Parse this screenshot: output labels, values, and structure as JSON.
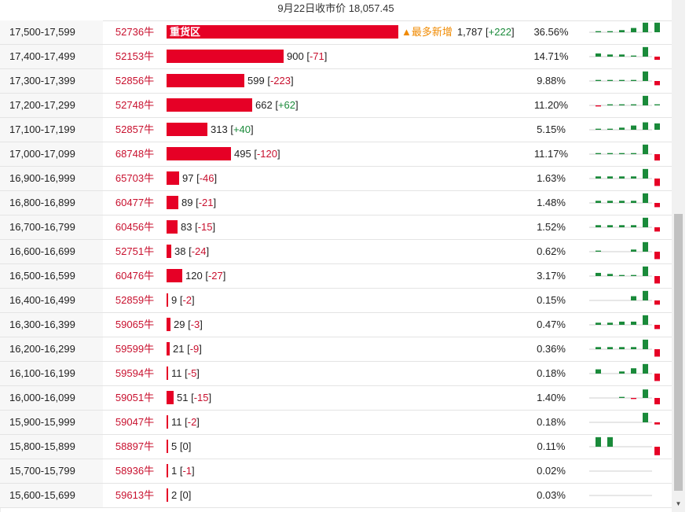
{
  "header": {
    "title": "9月22日收市价 18,057.45"
  },
  "rows": [
    {
      "range": "17,500-17,599",
      "strike": "52736牛",
      "value": "1,787",
      "change": "+222",
      "pct": "36.56%",
      "bar_fraction": 1.0,
      "tag": "重货区",
      "most": "▲最多新增",
      "spark": [
        1,
        1,
        2,
        4,
        9,
        9
      ]
    },
    {
      "range": "17,400-17,499",
      "strike": "52153牛",
      "value": "900",
      "change": "-71",
      "pct": "14.71%",
      "bar_fraction": 0.504,
      "spark": [
        3,
        2,
        2,
        1,
        9,
        -3
      ]
    },
    {
      "range": "17,300-17,399",
      "strike": "52856牛",
      "value": "599",
      "change": "-223",
      "pct": "9.88%",
      "bar_fraction": 0.335,
      "spark": [
        1,
        1,
        1,
        1,
        9,
        -4
      ]
    },
    {
      "range": "17,200-17,299",
      "strike": "52748牛",
      "value": "662",
      "change": "+62",
      "pct": "11.20%",
      "bar_fraction": 0.37,
      "spark": [
        -1,
        1,
        1,
        1,
        9,
        1
      ]
    },
    {
      "range": "17,100-17,199",
      "strike": "52857牛",
      "value": "313",
      "change": "+40",
      "pct": "5.15%",
      "bar_fraction": 0.175,
      "spark": [
        1,
        1,
        2,
        4,
        7,
        6
      ]
    },
    {
      "range": "17,000-17,099",
      "strike": "68748牛",
      "value": "495",
      "change": "-120",
      "pct": "11.17%",
      "bar_fraction": 0.277,
      "spark": [
        1,
        1,
        1,
        1,
        9,
        -6
      ]
    },
    {
      "range": "16,900-16,999",
      "strike": "65703牛",
      "value": "97",
      "change": "-46",
      "pct": "1.63%",
      "bar_fraction": 0.054,
      "spark": [
        2,
        2,
        2,
        2,
        9,
        -7
      ]
    },
    {
      "range": "16,800-16,899",
      "strike": "60477牛",
      "value": "89",
      "change": "-21",
      "pct": "1.48%",
      "bar_fraction": 0.05,
      "spark": [
        2,
        2,
        2,
        2,
        9,
        -4
      ]
    },
    {
      "range": "16,700-16,799",
      "strike": "60456牛",
      "value": "83",
      "change": "-15",
      "pct": "1.52%",
      "bar_fraction": 0.046,
      "spark": [
        2,
        2,
        2,
        2,
        9,
        -4
      ]
    },
    {
      "range": "16,600-16,699",
      "strike": "52751牛",
      "value": "38",
      "change": "-24",
      "pct": "0.62%",
      "bar_fraction": 0.021,
      "spark": [
        1,
        0,
        0,
        2,
        9,
        -7
      ]
    },
    {
      "range": "16,500-16,599",
      "strike": "60476牛",
      "value": "120",
      "change": "-27",
      "pct": "3.17%",
      "bar_fraction": 0.067,
      "spark": [
        3,
        2,
        1,
        1,
        9,
        -7
      ]
    },
    {
      "range": "16,400-16,499",
      "strike": "52859牛",
      "value": "9",
      "change": "-2",
      "pct": "0.15%",
      "bar_fraction": 0.005,
      "spark": [
        0,
        0,
        0,
        4,
        9,
        -4
      ]
    },
    {
      "range": "16,300-16,399",
      "strike": "59065牛",
      "value": "29",
      "change": "-3",
      "pct": "0.47%",
      "bar_fraction": 0.016,
      "spark": [
        2,
        2,
        3,
        3,
        9,
        -4
      ]
    },
    {
      "range": "16,200-16,299",
      "strike": "59599牛",
      "value": "21",
      "change": "-9",
      "pct": "0.36%",
      "bar_fraction": 0.012,
      "spark": [
        2,
        2,
        2,
        2,
        9,
        -7
      ]
    },
    {
      "range": "16,100-16,199",
      "strike": "59594牛",
      "value": "11",
      "change": "-5",
      "pct": "0.18%",
      "bar_fraction": 0.006,
      "spark": [
        4,
        0,
        2,
        5,
        9,
        -7
      ]
    },
    {
      "range": "16,000-16,099",
      "strike": "59051牛",
      "value": "51",
      "change": "-15",
      "pct": "1.40%",
      "bar_fraction": 0.029,
      "spark": [
        0,
        0,
        1,
        -1,
        8,
        -6
      ]
    },
    {
      "range": "15,900-15,999",
      "strike": "59047牛",
      "value": "11",
      "change": "-2",
      "pct": "0.18%",
      "bar_fraction": 0.006,
      "spark": [
        0,
        0,
        0,
        0,
        9,
        -2
      ]
    },
    {
      "range": "15,800-15,899",
      "strike": "58897牛",
      "value": "5",
      "change": "0",
      "pct": "0.11%",
      "bar_fraction": 0.003,
      "spark": [
        9,
        9,
        0,
        0,
        0,
        -8
      ]
    },
    {
      "range": "15,700-15,799",
      "strike": "58936牛",
      "value": "1",
      "change": "-1",
      "pct": "0.02%",
      "bar_fraction": 0.001,
      "spark": [
        0,
        0,
        0,
        0,
        0,
        0
      ]
    },
    {
      "range": "15,600-15,699",
      "strike": "59613牛",
      "value": "2",
      "change": "0",
      "pct": "0.03%",
      "bar_fraction": 0.001,
      "spark": [
        0,
        0,
        0,
        0,
        0,
        0
      ]
    }
  ],
  "colors": {
    "bar": "#e60026",
    "positive": "#1a8a3a",
    "negative": "#e60026",
    "strike": "#c8102e"
  },
  "icons": {
    "scroll_down": "chevron-down-icon"
  }
}
